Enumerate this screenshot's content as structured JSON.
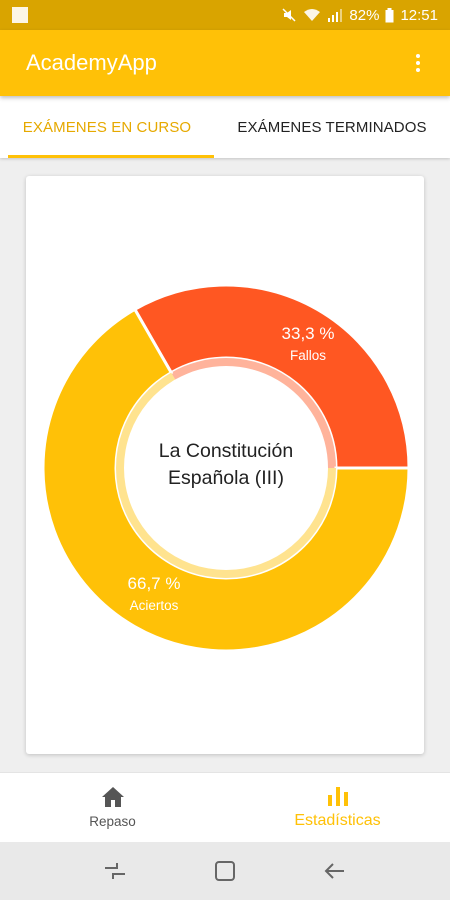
{
  "status_bar": {
    "battery": "82%",
    "time": "12:51",
    "icons": [
      "notification-square-icon",
      "mute-icon",
      "wifi-icon",
      "signal-icon",
      "battery-icon"
    ]
  },
  "app_bar": {
    "title": "AcademyApp",
    "menu_icon": "overflow-menu-icon"
  },
  "tabs": [
    {
      "label": "EXÁMENES EN CURSO",
      "active": true
    },
    {
      "label": "EXÁMENES TERMINADOS",
      "active": false
    }
  ],
  "chart_data": {
    "type": "pie",
    "center_text": [
      "La Constitución",
      "Española (III)"
    ],
    "slices": [
      {
        "name": "Fallos",
        "label": "33,3 %",
        "value": 33.3,
        "color": "#ff5722"
      },
      {
        "name": "Aciertos",
        "label": "66,7 %",
        "value": 66.7,
        "color": "#ffc107"
      }
    ]
  },
  "bottom_nav": [
    {
      "label": "Repaso",
      "icon": "home-icon",
      "active": false
    },
    {
      "label": "Estadísticas",
      "icon": "bar-chart-icon",
      "active": true
    }
  ],
  "system_nav": {
    "icons": [
      "recents-icon",
      "home-square-icon",
      "back-arrow-icon"
    ]
  },
  "colors": {
    "primary": "#ffc107",
    "primary_dark": "#d9a400",
    "accent": "#ff5722"
  }
}
